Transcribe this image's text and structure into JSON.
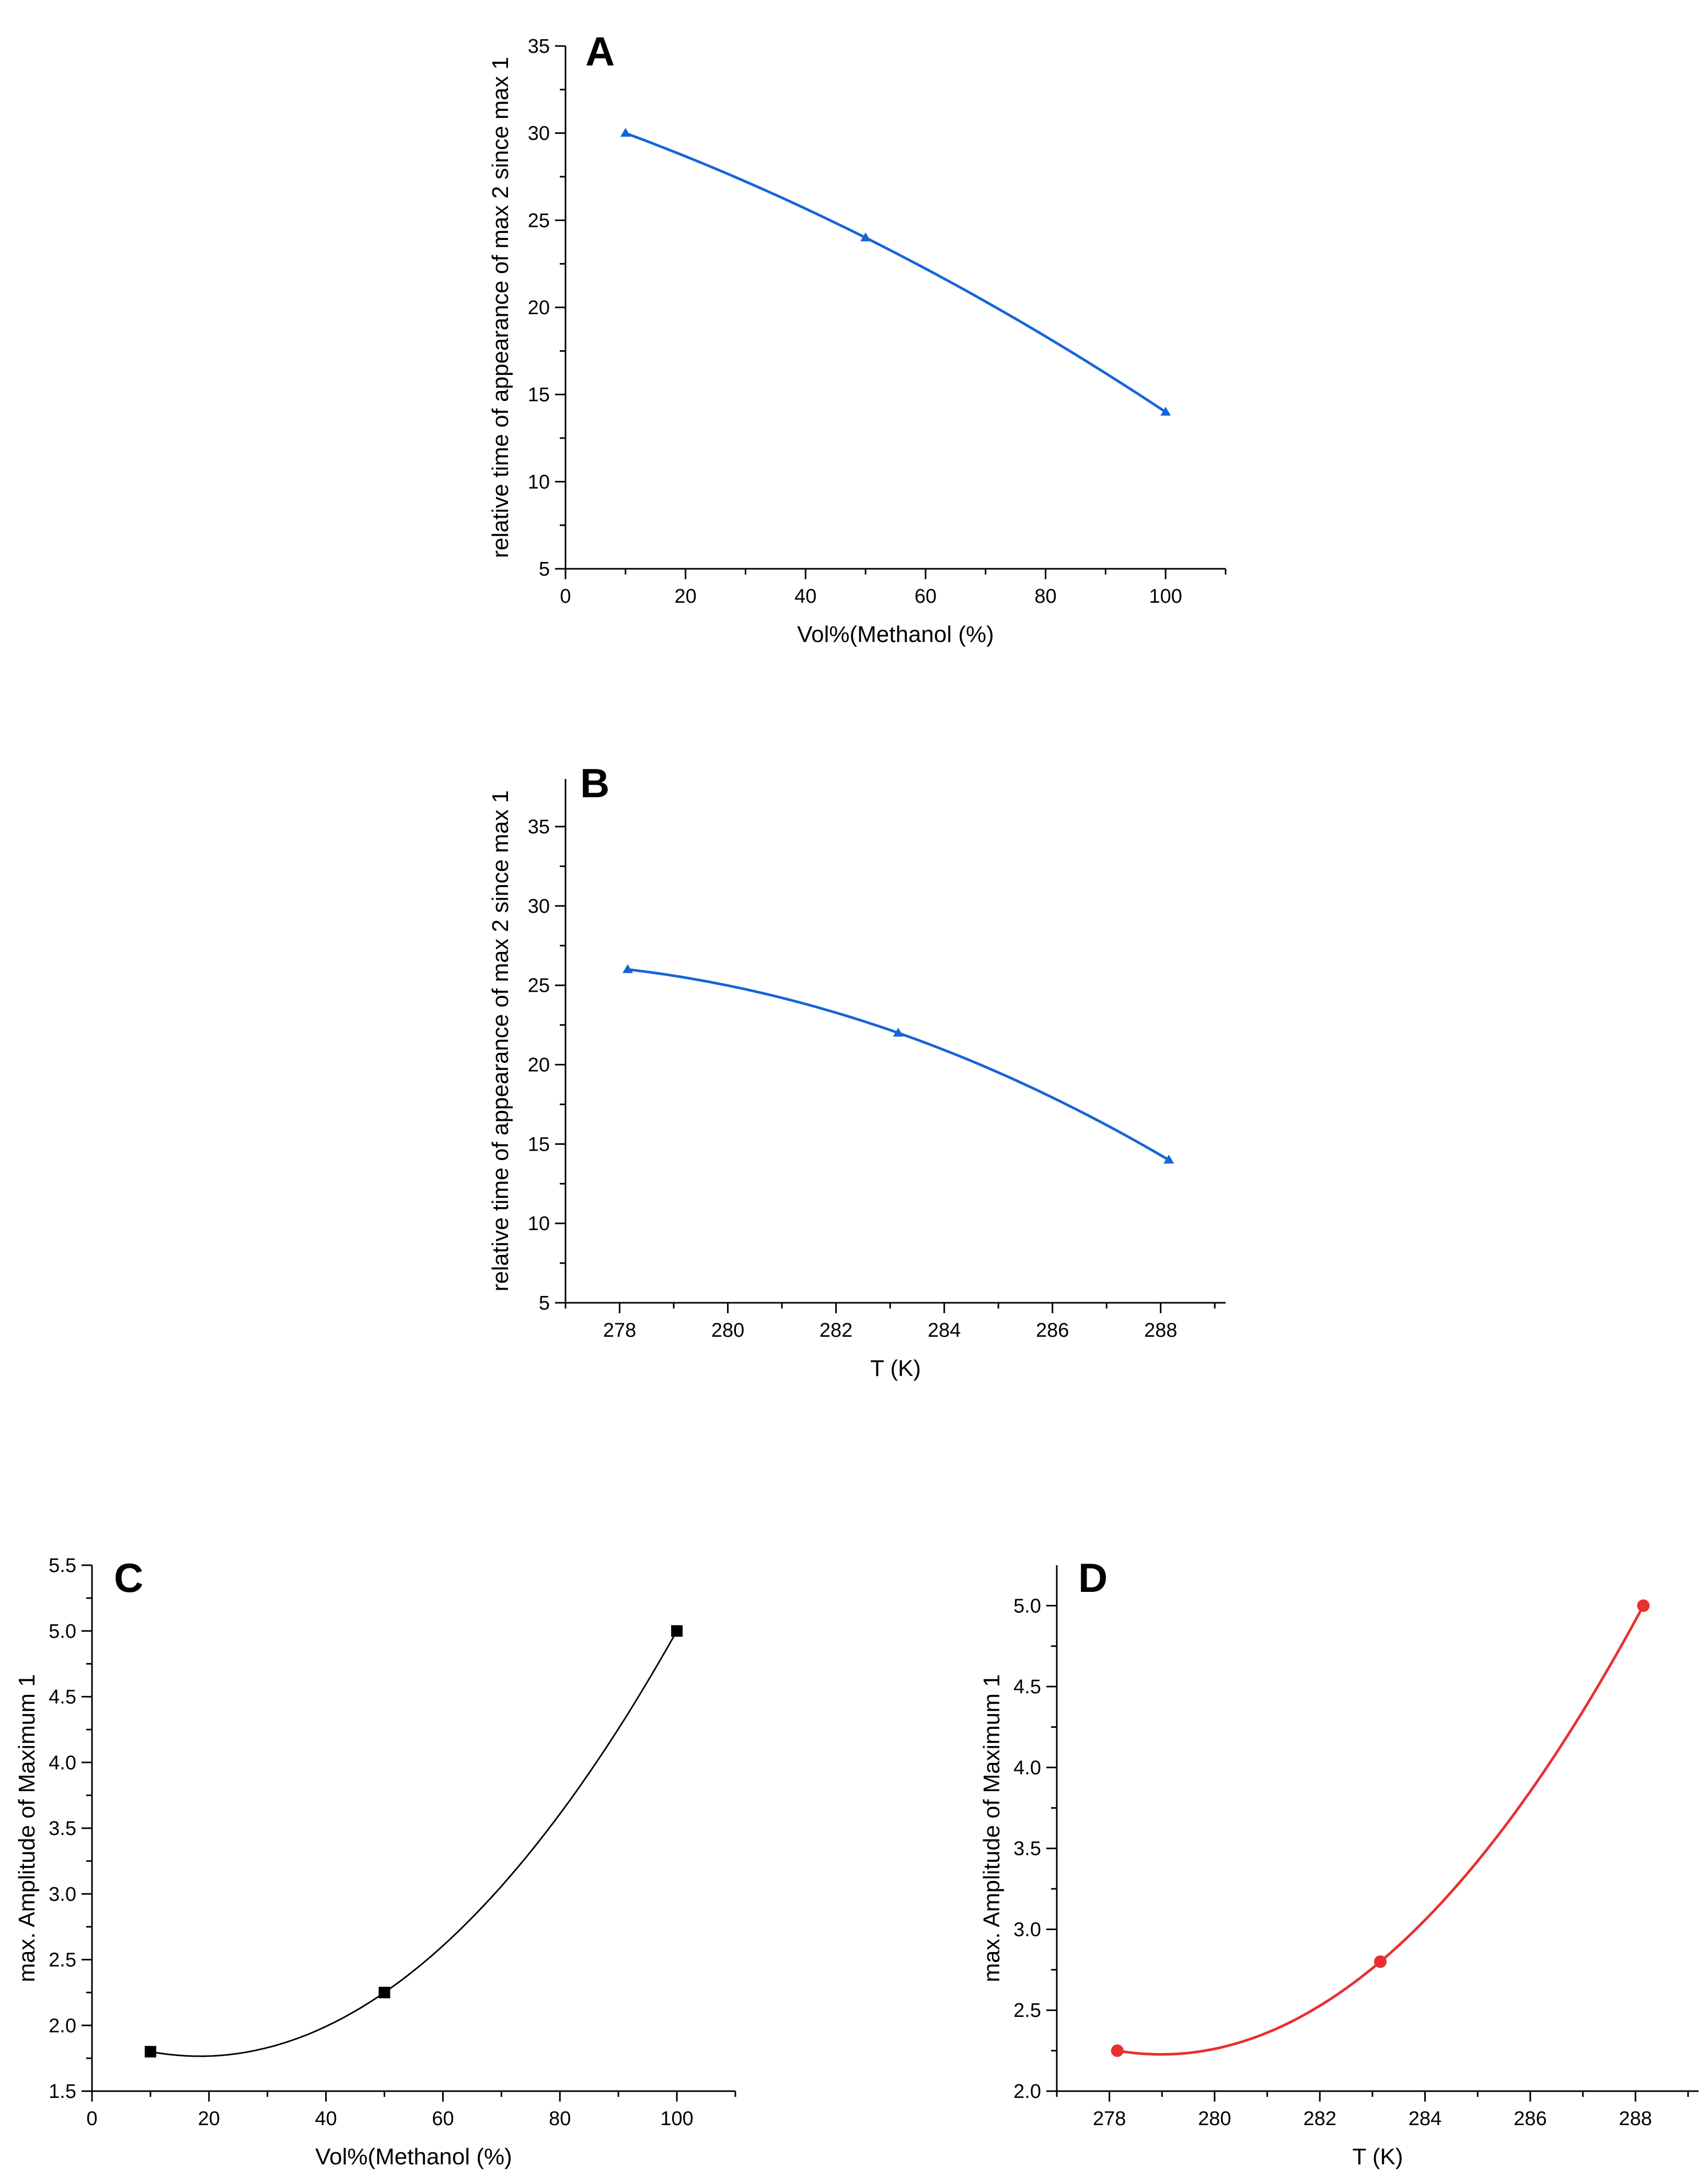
{
  "chart_data": [
    {
      "panel": "A",
      "type": "line",
      "xlabel": "Vol%(Methanol (%)",
      "ylabel": "relative time of appearance of max 2 since max 1",
      "xlim": [
        0,
        110
      ],
      "ylim": [
        5,
        35
      ],
      "xticks": [
        0,
        20,
        40,
        60,
        80,
        100
      ],
      "yticks": [
        5,
        10,
        15,
        20,
        25,
        30,
        35
      ],
      "series": [
        {
          "x": [
            10,
            50,
            100
          ],
          "y": [
            30,
            24,
            14
          ],
          "color": "#1565d8",
          "marker": "triangle"
        }
      ]
    },
    {
      "panel": "B",
      "type": "line",
      "xlabel": "T (K)",
      "ylabel": "relative time of appearance of max 2 since max 1",
      "xlim": [
        277,
        289.2
      ],
      "ylim": [
        5,
        38
      ],
      "xticks": [
        278,
        280,
        282,
        284,
        286,
        288
      ],
      "yticks": [
        5,
        10,
        15,
        20,
        25,
        30,
        35
      ],
      "series": [
        {
          "x": [
            278.15,
            283.15,
            288.15
          ],
          "y": [
            26,
            22,
            14
          ],
          "color": "#1565d8",
          "marker": "triangle"
        }
      ]
    },
    {
      "panel": "C",
      "type": "line",
      "xlabel": "Vol%(Methanol (%)",
      "ylabel": "max. Amplitude of Maximum 1",
      "xlim": [
        0,
        110
      ],
      "ylim": [
        1.5,
        5.5
      ],
      "xticks": [
        0,
        20,
        40,
        60,
        80,
        100
      ],
      "yticks": [
        1.5,
        2.0,
        2.5,
        3.0,
        3.5,
        4.0,
        4.5,
        5.0,
        5.5
      ],
      "series": [
        {
          "x": [
            10,
            50,
            100
          ],
          "y": [
            1.8,
            2.25,
            5.0
          ],
          "color": "#000000",
          "marker": "square"
        }
      ]
    },
    {
      "panel": "D",
      "type": "line",
      "xlabel": "T (K)",
      "ylabel": "max. Amplitude of Maximum 1",
      "xlim": [
        277,
        289.2
      ],
      "ylim": [
        2.0,
        5.25
      ],
      "xticks": [
        278,
        280,
        282,
        284,
        286,
        288
      ],
      "yticks": [
        2.0,
        2.5,
        3.0,
        3.5,
        4.0,
        4.5,
        5.0
      ],
      "series": [
        {
          "x": [
            278.15,
            283.15,
            288.15
          ],
          "y": [
            2.25,
            2.8,
            5.0
          ],
          "color": "#e8302f",
          "marker": "circle"
        }
      ]
    }
  ]
}
